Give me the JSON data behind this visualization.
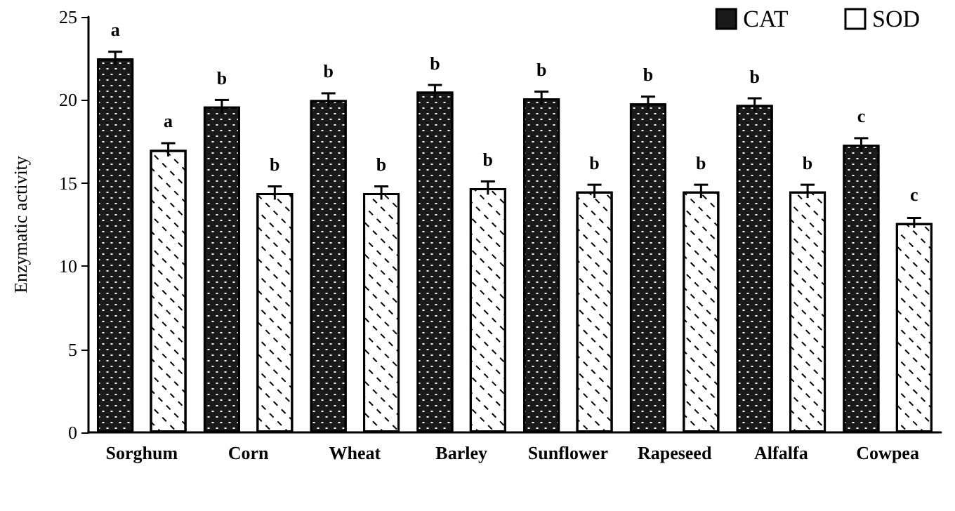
{
  "chart_data": {
    "type": "bar",
    "ylabel": "Enzymatic activity",
    "categories": [
      "Sorghum",
      "Corn",
      "Wheat",
      "Barley",
      "Sunflower",
      "Rapeseed",
      "Alfalfa",
      "Cowpea"
    ],
    "series": [
      {
        "name": "CAT",
        "color": "#1a1a1a",
        "values": [
          22.5,
          19.6,
          20.0,
          20.5,
          20.1,
          19.8,
          19.7,
          17.3
        ],
        "errors": [
          0.4,
          0.4,
          0.4,
          0.4,
          0.4,
          0.4,
          0.4,
          0.4
        ],
        "value_labels": [
          "a",
          "b",
          "b",
          "b",
          "b",
          "b",
          "b",
          "c"
        ]
      },
      {
        "name": "SOD",
        "color": "#ffffff",
        "values": [
          17.0,
          14.4,
          14.4,
          14.7,
          14.5,
          14.5,
          14.5,
          12.6
        ],
        "errors": [
          0.4,
          0.4,
          0.4,
          0.4,
          0.4,
          0.4,
          0.4,
          0.3
        ],
        "value_labels": [
          "a",
          "b",
          "b",
          "b",
          "b",
          "b",
          "b",
          "c"
        ]
      }
    ],
    "ylim": [
      0,
      25
    ],
    "yticks": [
      0,
      5,
      10,
      15,
      20,
      25
    ],
    "grid": false,
    "legend": "top right"
  }
}
